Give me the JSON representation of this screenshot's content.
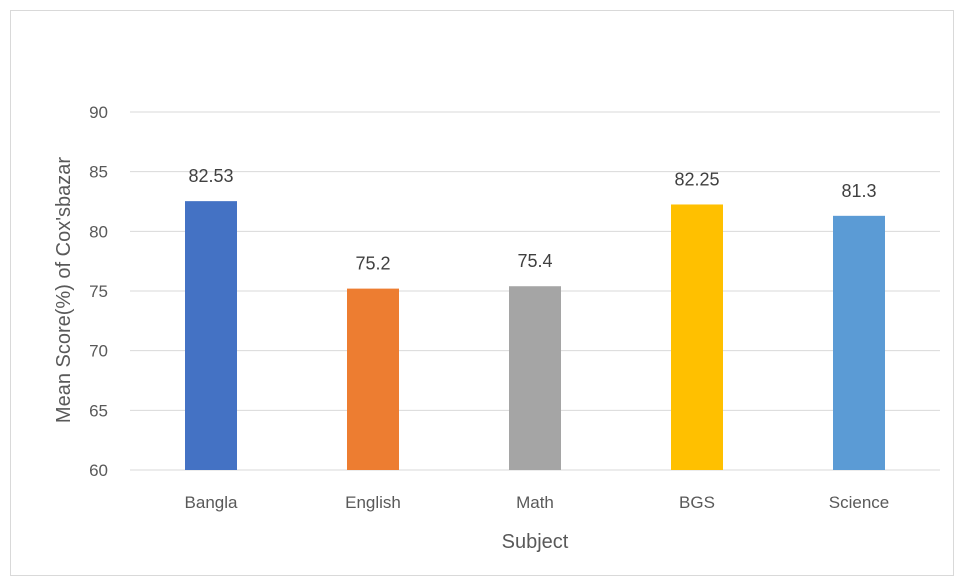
{
  "chart_data": {
    "type": "bar",
    "categories": [
      "Bangla",
      "English",
      "Math",
      "BGS",
      "Science"
    ],
    "values": [
      82.53,
      75.2,
      75.4,
      82.25,
      81.3
    ],
    "data_labels": [
      "82.53",
      "75.2",
      "75.4",
      "82.25",
      "81.3"
    ],
    "colors": [
      "#4472C4",
      "#ED7D31",
      "#A5A5A5",
      "#FFC000",
      "#5B9BD5"
    ],
    "xlabel": "Subject",
    "ylabel": "Mean Score(%) of Cox'sbazar",
    "ylim": [
      60,
      90
    ],
    "yticks": [
      "60",
      "65",
      "70",
      "75",
      "80",
      "85",
      "90"
    ],
    "grid": true,
    "legend": "none"
  }
}
